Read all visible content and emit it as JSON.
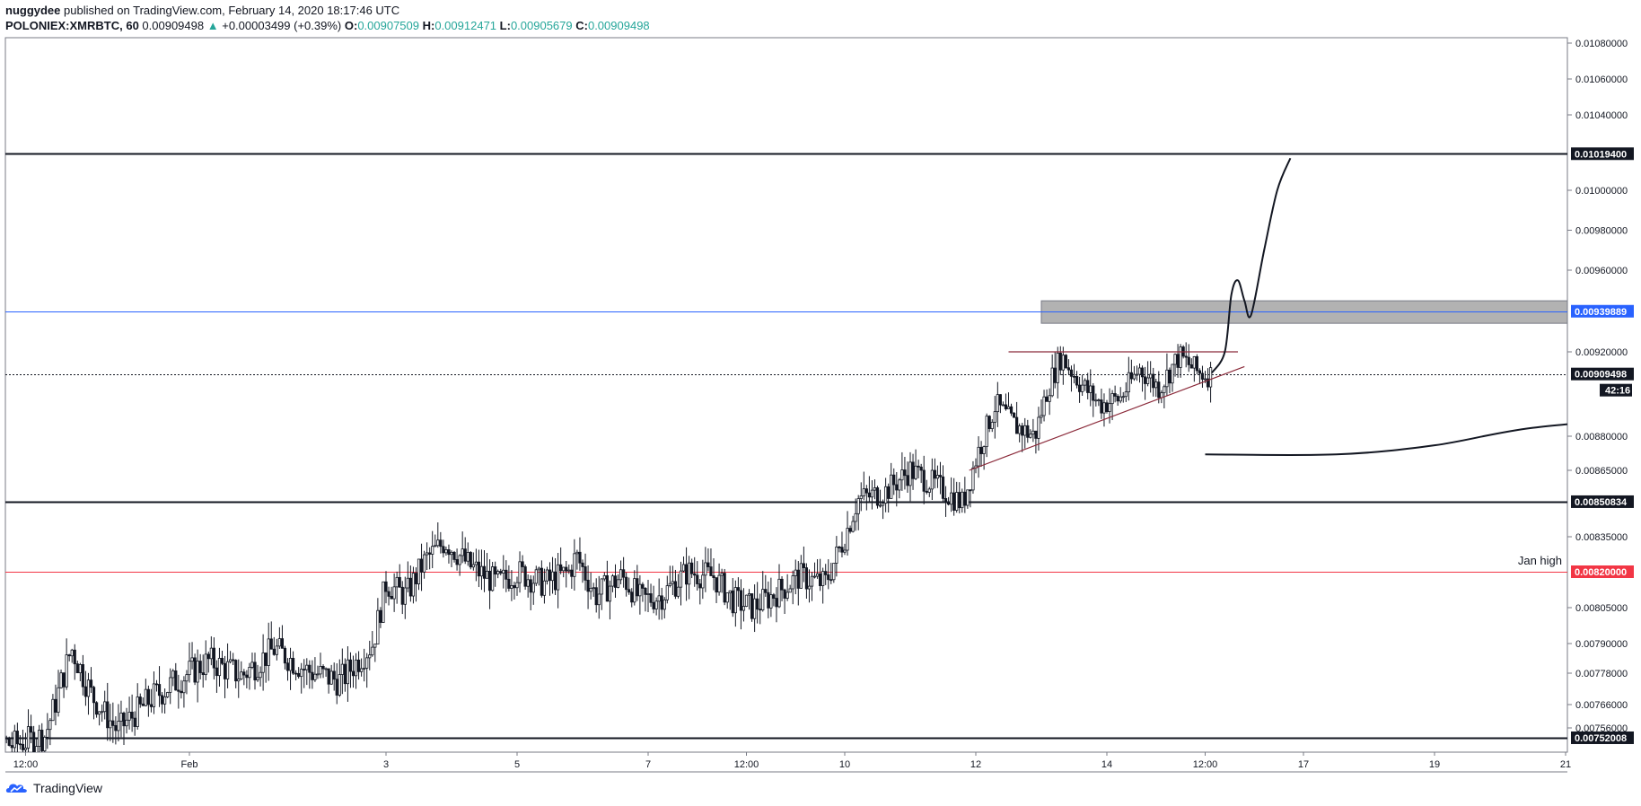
{
  "header": {
    "publisher_name": "nuggydee",
    "publisher_suffix": "published on TradingView.com, February 14, 2020 18:17:46 UTC",
    "symbol": "POLONIEX:XMRBTC, 60",
    "last": "0.00909498",
    "change_arrow": "▲",
    "change": "+0.00003499 (+0.39%)",
    "o_key": "O:",
    "o_val": "0.00907509",
    "h_key": "H:",
    "h_val": "0.00912471",
    "l_key": "L:",
    "l_val": "0.00905679",
    "c_key": "C:",
    "c_val": "0.00909498"
  },
  "footer": {
    "brand": "TradingView"
  },
  "chart_data": {
    "type": "candlestick",
    "symbol": "POLONIEX:XMRBTC",
    "interval": "60",
    "ylim": [
      0.0075,
      0.0109
    ],
    "x_ticks": [
      {
        "day": 29.5,
        "label": "12:00"
      },
      {
        "day": 32.0,
        "label": "Feb"
      },
      {
        "day": 35.0,
        "label": "3"
      },
      {
        "day": 37.0,
        "label": "5"
      },
      {
        "day": 39.0,
        "label": "7"
      },
      {
        "day": 40.5,
        "label": "12:00"
      },
      {
        "day": 42.0,
        "label": "10"
      },
      {
        "day": 44.0,
        "label": "12"
      },
      {
        "day": 46.0,
        "label": "14"
      },
      {
        "day": 47.5,
        "label": "12:00"
      },
      {
        "day": 49.0,
        "label": "17"
      },
      {
        "day": 51.0,
        "label": "19"
      },
      {
        "day": 53.0,
        "label": "21"
      }
    ],
    "y_ticks": [
      "0.01080000",
      "0.01060000",
      "0.01040000",
      "0.01000000",
      "0.00980000",
      "0.00960000",
      "0.00920000",
      "0.00880000",
      "0.00865000",
      "0.00835000",
      "0.00805000",
      "0.00790000",
      "0.00778000",
      "0.00766000",
      "0.00756000"
    ],
    "y_tick_values": [
      0.0108,
      0.0106,
      0.0104,
      0.01,
      0.0098,
      0.0096,
      0.0092,
      0.0088,
      0.00865,
      0.00835,
      0.00805,
      0.0079,
      0.00778,
      0.00766,
      0.00756
    ],
    "price_path": [
      [
        28.5,
        0.00748
      ],
      [
        29.0,
        0.00752
      ],
      [
        29.3,
        0.00749
      ],
      [
        29.8,
        0.00753
      ],
      [
        30.2,
        0.00788
      ],
      [
        30.5,
        0.0077
      ],
      [
        30.9,
        0.00755
      ],
      [
        31.4,
        0.00768
      ],
      [
        31.8,
        0.00775
      ],
      [
        32.3,
        0.00783
      ],
      [
        32.8,
        0.00777
      ],
      [
        33.3,
        0.00788
      ],
      [
        33.8,
        0.00779
      ],
      [
        34.3,
        0.00775
      ],
      [
        34.8,
        0.0079
      ],
      [
        35.0,
        0.00815
      ],
      [
        35.3,
        0.0081
      ],
      [
        35.6,
        0.00825
      ],
      [
        35.9,
        0.00833
      ],
      [
        36.3,
        0.00822
      ],
      [
        36.7,
        0.00815
      ],
      [
        37.0,
        0.0082
      ],
      [
        37.4,
        0.00815
      ],
      [
        37.8,
        0.0082
      ],
      [
        37.9,
        0.00827
      ],
      [
        38.2,
        0.0081
      ],
      [
        38.6,
        0.00818
      ],
      [
        38.9,
        0.00808
      ],
      [
        39.2,
        0.0081
      ],
      [
        39.6,
        0.0082
      ],
      [
        40.0,
        0.00818
      ],
      [
        40.3,
        0.00808
      ],
      [
        40.6,
        0.00805
      ],
      [
        41.0,
        0.00812
      ],
      [
        41.3,
        0.00818
      ],
      [
        41.7,
        0.00815
      ],
      [
        42.0,
        0.00835
      ],
      [
        42.2,
        0.00852
      ],
      [
        42.6,
        0.00855
      ],
      [
        43.0,
        0.00865
      ],
      [
        43.4,
        0.00858
      ],
      [
        43.8,
        0.0085
      ],
      [
        44.0,
        0.0087
      ],
      [
        44.3,
        0.00895
      ],
      [
        44.6,
        0.00885
      ],
      [
        44.9,
        0.0088
      ],
      [
        45.1,
        0.00903
      ],
      [
        45.3,
        0.00918
      ],
      [
        45.6,
        0.00905
      ],
      [
        45.9,
        0.00895
      ],
      [
        46.2,
        0.00898
      ],
      [
        46.5,
        0.00912
      ],
      [
        46.8,
        0.00903
      ],
      [
        47.1,
        0.00918
      ],
      [
        47.4,
        0.0091
      ],
      [
        47.6,
        0.00909
      ]
    ],
    "levels": [
      {
        "price": 0.010194,
        "label": "0.01019400",
        "color": "#131722"
      },
      {
        "price": 0.00939889,
        "label": "0.00939889",
        "color": "#2962ff"
      },
      {
        "price": 0.00909498,
        "label": "0.00909498",
        "color": "#131722",
        "dotted": true
      },
      {
        "price": 0.00850834,
        "label": "0.00850834",
        "color": "#131722"
      },
      {
        "price": 0.0082,
        "label": "0.00820000",
        "color": "#f23645"
      },
      {
        "price": 0.00752008,
        "label": "0.00752008",
        "color": "#131722"
      }
    ],
    "countdown": "42:16",
    "annotations": [
      {
        "text": "Jan high"
      }
    ],
    "supply_zone": {
      "from_day": 45.0,
      "price_top": 0.00945,
      "price_bottom": 0.00934
    },
    "triangle": {
      "resistance": {
        "from_day": 44.5,
        "to_day": 48.0,
        "price": 0.0092
      },
      "support": {
        "from_day": 43.9,
        "to_day": 48.1,
        "price_start": 0.00865,
        "price_end": 0.00913
      }
    },
    "projection_up": [
      [
        47.6,
        0.0091
      ],
      [
        47.8,
        0.0092
      ],
      [
        47.9,
        0.00948
      ],
      [
        48.0,
        0.00955
      ],
      [
        48.1,
        0.00945
      ],
      [
        48.2,
        0.00938
      ],
      [
        48.4,
        0.0097
      ],
      [
        48.6,
        0.01
      ],
      [
        48.8,
        0.01017
      ]
    ],
    "projection_curve": [
      [
        47.5,
        0.00872
      ],
      [
        49.5,
        0.00872
      ],
      [
        51.0,
        0.00876
      ],
      [
        52.5,
        0.00884
      ],
      [
        54.7,
        0.0089
      ]
    ]
  }
}
